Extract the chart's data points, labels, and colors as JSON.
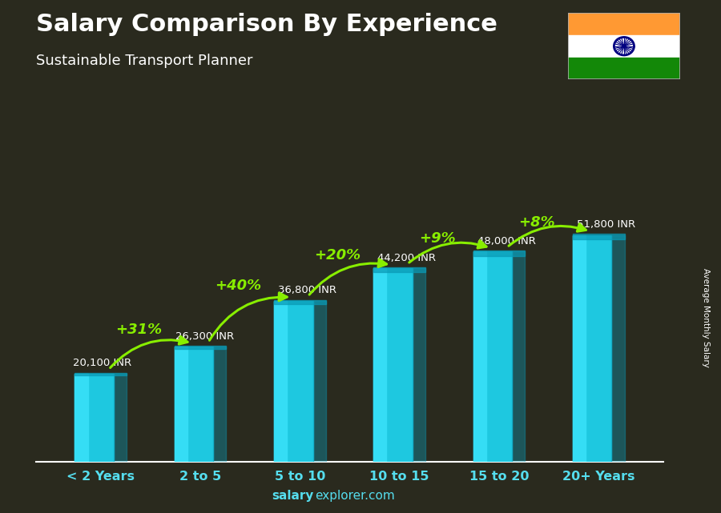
{
  "title": "Salary Comparison By Experience",
  "subtitle": "Sustainable Transport Planner",
  "categories": [
    "< 2 Years",
    "2 to 5",
    "5 to 10",
    "10 to 15",
    "15 to 20",
    "20+ Years"
  ],
  "values": [
    20100,
    26300,
    36800,
    44200,
    48000,
    51800
  ],
  "labels": [
    "20,100 INR",
    "26,300 INR",
    "36,800 INR",
    "44,200 INR",
    "48,000 INR",
    "51,800 INR"
  ],
  "pct_changes": [
    null,
    "+31%",
    "+40%",
    "+20%",
    "+9%",
    "+8%"
  ],
  "bar_color_main": "#1ec8e0",
  "bar_color_left": "#35ddf5",
  "bar_color_dark": "#0a9ab5",
  "pct_color": "#88ee00",
  "label_color": "#ffffff",
  "title_color": "#ffffff",
  "subtitle_color": "#ffffff",
  "bg_color": "#2a2a1e",
  "xtick_color": "#55ddee",
  "footer_text_bold": "salary",
  "footer_text_normal": "explorer.com",
  "side_label": "Average Monthly Salary",
  "ylim": [
    0,
    68000
  ],
  "bar_width": 0.52,
  "arrow_configs": [
    [
      0,
      1,
      "+31%",
      -0.3
    ],
    [
      1,
      2,
      "+40%",
      -0.3
    ],
    [
      2,
      3,
      "+20%",
      -0.28
    ],
    [
      3,
      4,
      "+9%",
      -0.28
    ],
    [
      4,
      5,
      "+8%",
      -0.28
    ]
  ],
  "label_x_offsets": [
    -0.28,
    -0.25,
    -0.22,
    -0.22,
    -0.22,
    -0.22
  ],
  "label_y_offsets": [
    1200,
    1200,
    1200,
    1200,
    1200,
    1200
  ]
}
